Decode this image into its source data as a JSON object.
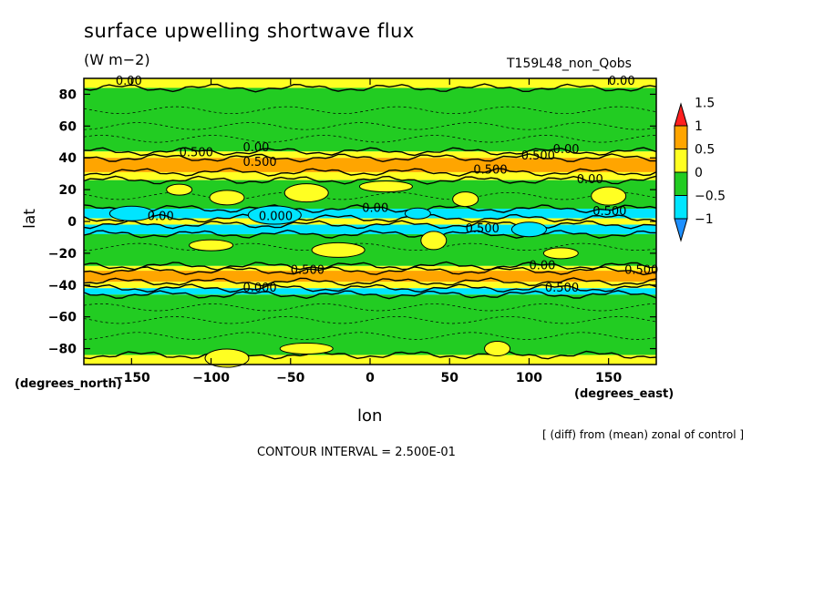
{
  "chart_data": {
    "type": "heatmap",
    "title": "surface upwelling shortwave flux",
    "units": "(W m−2)",
    "run_name": "T159L48_non_Qobs",
    "xlabel": "lon",
    "ylabel": "lat",
    "x_unit_label": "(degrees_east)",
    "y_unit_label": "(degrees_north)",
    "note": "[ (diff) from (mean) zonal of control ]",
    "contour_interval_text": "CONTOUR INTERVAL = 2.500E-01",
    "xlim": [
      -180,
      180
    ],
    "ylim": [
      -90,
      90
    ],
    "x_ticks": [
      -150,
      -100,
      -50,
      0,
      50,
      100,
      150
    ],
    "y_ticks": [
      80,
      60,
      40,
      20,
      0,
      -20,
      -40,
      -60,
      -80
    ],
    "x_tick_labels": [
      "−150",
      "−100",
      "−50",
      "0",
      "50",
      "100",
      "150"
    ],
    "y_tick_labels": [
      "80",
      "60",
      "40",
      "20",
      "0",
      "−20",
      "−40",
      "−60",
      "−80"
    ],
    "colorbar": {
      "levels": [
        -1,
        -0.5,
        0,
        0.5,
        1,
        1.5
      ],
      "labels": [
        "−1",
        "−0.5",
        "0",
        "0.5",
        "1",
        "1.5"
      ],
      "colors": [
        "#1e90ff",
        "#00e5ff",
        "#22cc22",
        "#ffff22",
        "#ffa500",
        "#ff2020"
      ]
    },
    "lat_bands": [
      {
        "lat": [
          84,
          90
        ],
        "value": 0.2
      },
      {
        "lat": [
          44,
          84
        ],
        "value": -0.2
      },
      {
        "lat": [
          40,
          44
        ],
        "value": 0.3
      },
      {
        "lat": [
          31,
          40
        ],
        "value": 0.7
      },
      {
        "lat": [
          26,
          31
        ],
        "value": 0.3
      },
      {
        "lat": [
          8,
          26
        ],
        "value": -0.1
      },
      {
        "lat": [
          2,
          8
        ],
        "value": -0.6
      },
      {
        "lat": [
          -2,
          2
        ],
        "value": 0.1
      },
      {
        "lat": [
          -8,
          -2
        ],
        "value": -0.6
      },
      {
        "lat": [
          -28,
          -8
        ],
        "value": -0.2
      },
      {
        "lat": [
          -31,
          -28
        ],
        "value": 0.3
      },
      {
        "lat": [
          -38,
          -31
        ],
        "value": 0.7
      },
      {
        "lat": [
          -42,
          -38
        ],
        "value": 0.2
      },
      {
        "lat": [
          -46,
          -42
        ],
        "value": -0.6
      },
      {
        "lat": [
          -84,
          -46
        ],
        "value": -0.2
      },
      {
        "lat": [
          -90,
          -84
        ],
        "value": 0.2
      }
    ],
    "contour_labels": [
      {
        "lon": -160,
        "lat": 86,
        "text": "0.00"
      },
      {
        "lon": 150,
        "lat": 86,
        "text": "0.00"
      },
      {
        "lon": -120,
        "lat": 41,
        "text": "0.500"
      },
      {
        "lon": -80,
        "lat": 44,
        "text": "0.00"
      },
      {
        "lon": -80,
        "lat": 35,
        "text": "0.500"
      },
      {
        "lon": 95,
        "lat": 39,
        "text": "0.500"
      },
      {
        "lon": 115,
        "lat": 43,
        "text": "0.00"
      },
      {
        "lon": 65,
        "lat": 30,
        "text": "0.500"
      },
      {
        "lon": 130,
        "lat": 24,
        "text": "0.00"
      },
      {
        "lon": -140,
        "lat": 1,
        "text": "0.00"
      },
      {
        "lon": -70,
        "lat": 1,
        "text": "0.000"
      },
      {
        "lon": -5,
        "lat": 6,
        "text": "0.00"
      },
      {
        "lon": 60,
        "lat": -7,
        "text": "0.500"
      },
      {
        "lon": 140,
        "lat": 4,
        "text": "0.500"
      },
      {
        "lon": 100,
        "lat": -30,
        "text": "0.00"
      },
      {
        "lon": -50,
        "lat": -33,
        "text": "0.500"
      },
      {
        "lon": -80,
        "lat": -44,
        "text": "0.000"
      },
      {
        "lon": 110,
        "lat": -44,
        "text": "0.500"
      },
      {
        "lon": 160,
        "lat": -33,
        "text": "0.500"
      }
    ]
  }
}
